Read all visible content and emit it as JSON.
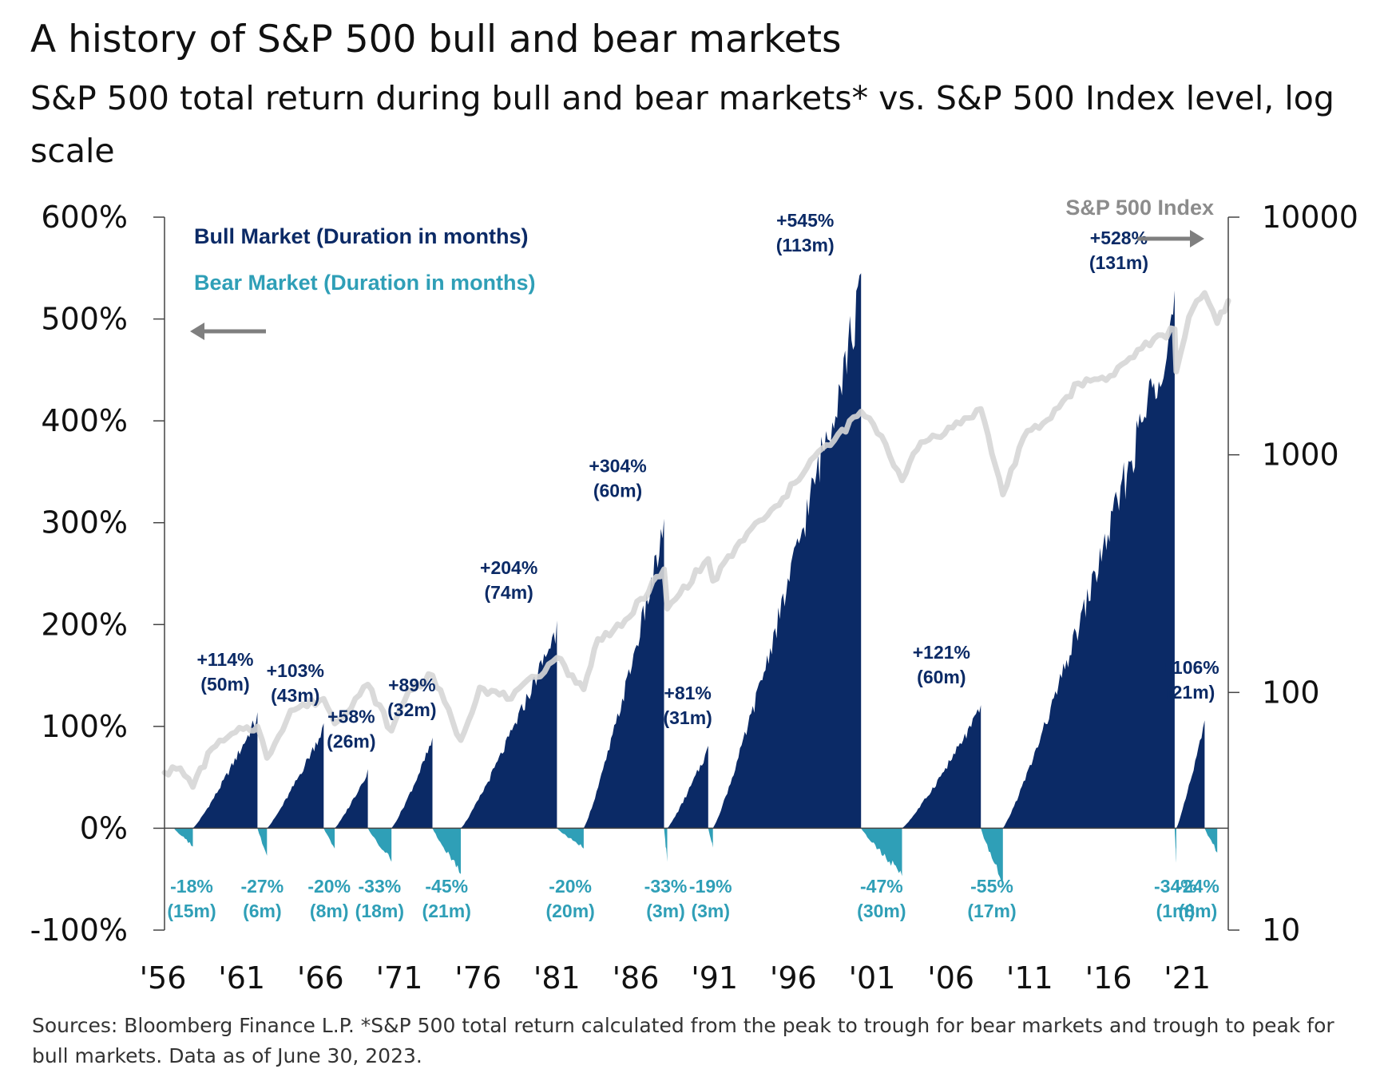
{
  "title": "A history of S&P 500 bull and bear markets",
  "subtitle": "S&P 500 total return during bull and bear markets* vs. S&P 500 Index level, log scale",
  "footnote": "Sources: Bloomberg Finance L.P. *S&P 500 total return calculated from the peak to trough for bear markets and trough to peak for bull markets. Data as of June 30, 2023.",
  "legend": {
    "bull": "Bull Market (Duration in months)",
    "bear": "Bear Market (Duration in months)",
    "index": "S&P 500 Index"
  },
  "colors": {
    "bull": "#0b2a66",
    "bear": "#2f9fb7",
    "index_line": "#d6d6d6",
    "arrow": "#7f7f7f",
    "axis": "#444444"
  },
  "chart_data": {
    "type": "area",
    "x_range": [
      1956,
      2023.5
    ],
    "x_ticks": [
      "'56",
      "'61",
      "'66",
      "'71",
      "'76",
      "'81",
      "'86",
      "'91",
      "'96",
      "'01",
      "'06",
      "'11",
      "'16",
      "'21"
    ],
    "x_tick_years": [
      1956,
      1961,
      1966,
      1971,
      1976,
      1981,
      1986,
      1991,
      1996,
      2001,
      2006,
      2011,
      2016,
      2021
    ],
    "y_left": {
      "label": "",
      "range": [
        -100,
        600
      ],
      "ticks": [
        "600%",
        "500%",
        "400%",
        "300%",
        "200%",
        "100%",
        "0%",
        "-100%"
      ],
      "tick_values": [
        600,
        500,
        400,
        300,
        200,
        100,
        0,
        -100
      ]
    },
    "y_right": {
      "label": "",
      "scale": "log",
      "range": [
        10,
        10000
      ],
      "ticks": [
        "10000",
        "1000",
        "100",
        "10"
      ],
      "tick_values": [
        10000,
        1000,
        100,
        10
      ]
    },
    "bull_markets": [
      {
        "start": 1957.8,
        "end": 1961.9,
        "return": 114,
        "label": "+114%",
        "months": "(50m)"
      },
      {
        "start": 1962.5,
        "end": 1966.1,
        "return": 103,
        "label": "+103%",
        "months": "(43m)"
      },
      {
        "start": 1966.8,
        "end": 1968.9,
        "return": 58,
        "label": "+58%",
        "months": "(26m)"
      },
      {
        "start": 1970.4,
        "end": 1973.0,
        "return": 89,
        "label": "+89%",
        "months": "(32m)"
      },
      {
        "start": 1974.8,
        "end": 1980.9,
        "return": 204,
        "label": "+204%",
        "months": "(74m)"
      },
      {
        "start": 1982.6,
        "end": 1987.7,
        "return": 304,
        "label": "+304%",
        "months": "(60m)"
      },
      {
        "start": 1987.9,
        "end": 1990.5,
        "return": 81,
        "label": "+81%",
        "months": "(31m)"
      },
      {
        "start": 1990.8,
        "end": 2000.2,
        "return": 545,
        "label": "+545%",
        "months": "(113m)"
      },
      {
        "start": 2002.8,
        "end": 2007.8,
        "return": 121,
        "label": "+121%",
        "months": "(60m)"
      },
      {
        "start": 2009.2,
        "end": 2020.1,
        "return": 528,
        "label": "+528%",
        "months": "(131m)"
      },
      {
        "start": 2020.2,
        "end": 2022.0,
        "return": 106,
        "label": "+106%",
        "months": "(21m)"
      }
    ],
    "bear_markets": [
      {
        "start": 1956.6,
        "end": 1957.8,
        "return": -18,
        "label": "-18%",
        "months": "(15m)"
      },
      {
        "start": 1961.9,
        "end": 1962.5,
        "return": -27,
        "label": "-27%",
        "months": "(6m)"
      },
      {
        "start": 1966.1,
        "end": 1966.8,
        "return": -20,
        "label": "-20%",
        "months": "(8m)"
      },
      {
        "start": 1968.9,
        "end": 1970.4,
        "return": -33,
        "label": "-33%",
        "months": "(18m)"
      },
      {
        "start": 1973.0,
        "end": 1974.8,
        "return": -45,
        "label": "-45%",
        "months": "(21m)"
      },
      {
        "start": 1980.9,
        "end": 1982.6,
        "return": -20,
        "label": "-20%",
        "months": "(20m)"
      },
      {
        "start": 1987.7,
        "end": 1987.9,
        "return": -33,
        "label": "-33%",
        "months": "(3m)"
      },
      {
        "start": 1990.5,
        "end": 1990.8,
        "return": -19,
        "label": "-19%",
        "months": "(3m)"
      },
      {
        "start": 2000.2,
        "end": 2002.8,
        "return": -47,
        "label": "-47%",
        "months": "(30m)"
      },
      {
        "start": 2007.8,
        "end": 2009.2,
        "return": -55,
        "label": "-55%",
        "months": "(17m)"
      },
      {
        "start": 2020.1,
        "end": 2020.2,
        "return": -34,
        "label": "-34%",
        "months": "(1m)"
      },
      {
        "start": 2022.0,
        "end": 2022.8,
        "return": -24,
        "label": "-24%",
        "months": "(8m)"
      }
    ],
    "sp500_index": {
      "name": "S&P 500 Index",
      "x": [
        1956.0,
        1957.0,
        1957.8,
        1959.0,
        1961.0,
        1961.9,
        1962.5,
        1964.0,
        1966.1,
        1966.8,
        1968.9,
        1970.4,
        1971.5,
        1973.0,
        1974.8,
        1976.0,
        1978.0,
        1980.9,
        1982.6,
        1983.5,
        1985.0,
        1987.7,
        1987.9,
        1990.5,
        1990.8,
        1993.0,
        1995.0,
        1997.0,
        1998.5,
        2000.2,
        2001.5,
        2002.8,
        2004.0,
        2006.0,
        2007.8,
        2009.2,
        2010.5,
        2012.0,
        2014.0,
        2016.0,
        2018.0,
        2020.1,
        2020.2,
        2021.0,
        2022.0,
        2022.8,
        2023.5
      ],
      "y": [
        46,
        48,
        40,
        58,
        70,
        72,
        53,
        84,
        94,
        74,
        108,
        69,
        102,
        118,
        63,
        105,
        94,
        140,
        103,
        168,
        190,
        330,
        225,
        365,
        295,
        470,
        615,
        950,
        1150,
        1520,
        1200,
        780,
        1130,
        1300,
        1560,
        680,
        1180,
        1400,
        2000,
        2150,
        2800,
        3380,
        2240,
        3800,
        4800,
        3580,
        4450
      ]
    }
  }
}
